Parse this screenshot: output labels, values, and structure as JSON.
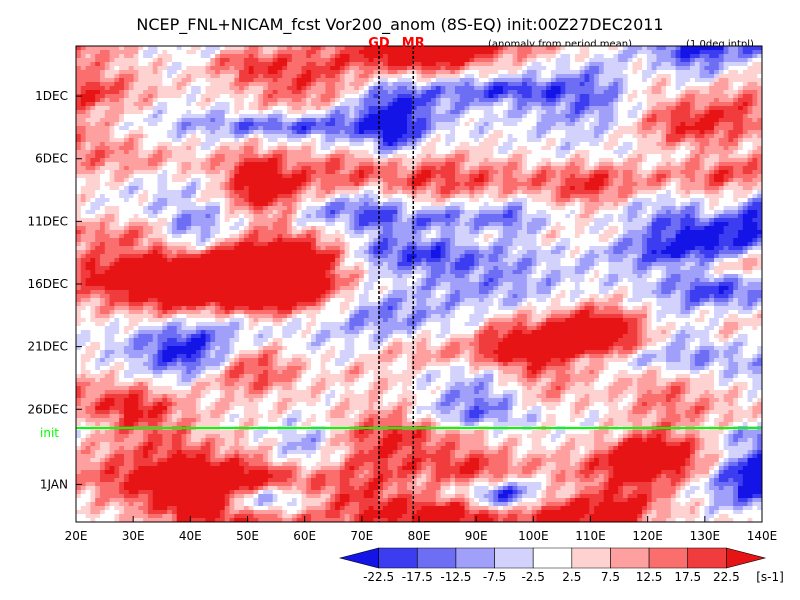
{
  "chart_data": {
    "type": "heatmap",
    "title": "NCEP_FNL+NICAM_fcst Vor200_anom (8S-EQ) init:00Z27DEC2011",
    "subtitle_mid": "(anomaly from period mean)",
    "subtitle_right": "(1.0deg intpl)",
    "markers": [
      {
        "label": "GD",
        "lon": 73,
        "color": "#ff0000"
      },
      {
        "label": "MR",
        "lon": 79,
        "color": "#ff0000"
      }
    ],
    "init_line": {
      "label": "init",
      "date_offset_days": 26.5,
      "color": "#00ff00"
    },
    "x": {
      "range": [
        20,
        140
      ],
      "ticks": [
        20,
        30,
        40,
        50,
        60,
        70,
        80,
        90,
        100,
        110,
        120,
        130,
        140
      ],
      "tick_labels": [
        "20E",
        "30E",
        "40E",
        "50E",
        "60E",
        "70E",
        "80E",
        "90E",
        "100E",
        "110E",
        "120E",
        "130E",
        "140E"
      ]
    },
    "y": {
      "range_days": [
        -4,
        34
      ],
      "ticks_days": [
        0,
        5,
        10,
        15,
        20,
        25,
        31
      ],
      "tick_labels": [
        "1DEC",
        "6DEC",
        "11DEC",
        "16DEC",
        "21DEC",
        "26DEC",
        "1JAN"
      ]
    },
    "colorbar": {
      "levels": [
        -22.5,
        -17.5,
        -12.5,
        -7.5,
        -2.5,
        2.5,
        7.5,
        12.5,
        17.5,
        22.5
      ],
      "tick_labels": [
        "-22.5",
        "-17.5",
        "-12.5",
        "-7.5",
        "-2.5",
        "2.5",
        "7.5",
        "12.5",
        "17.5",
        "22.5"
      ],
      "colors": [
        "#1414e6",
        "#3c3cf0",
        "#6e6ef5",
        "#a0a0fa",
        "#d2d2fc",
        "#ffffff",
        "#ffd2d2",
        "#ffa0a0",
        "#fa6e6e",
        "#f03c3c",
        "#e61414"
      ],
      "unit": "[s-1]"
    }
  }
}
